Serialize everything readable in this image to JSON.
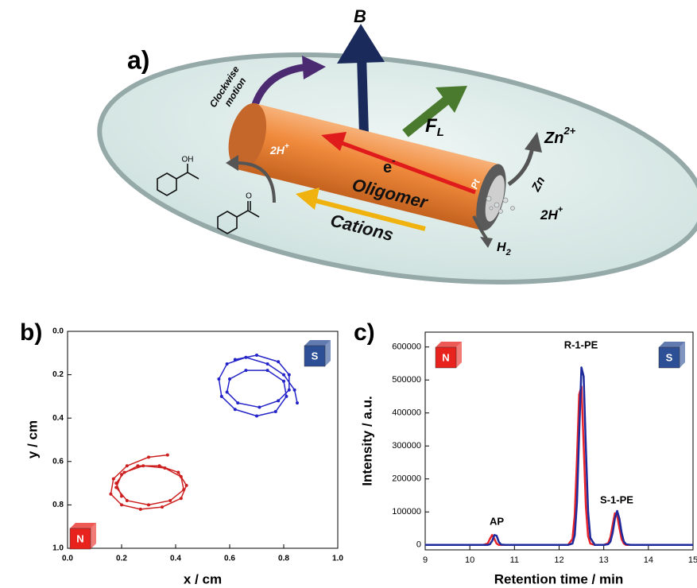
{
  "figure_a": {
    "label": "a)",
    "field": "B",
    "motion": [
      "Clockwise",
      "motion"
    ],
    "force": {
      "base": "F",
      "sub": "L"
    },
    "electron": {
      "base": "e",
      "sup": "-"
    },
    "rod": "Oligomer",
    "ions": "Cations",
    "electrode": "Pt",
    "metal": "Zn",
    "metal_ion": {
      "base": "Zn",
      "sup": "2+"
    },
    "protons_left": {
      "base": "2H",
      "sup": "+"
    },
    "protons_right": {
      "base": "2H",
      "sup": "+"
    },
    "hydrogen": {
      "base": "H",
      "sub": "2"
    },
    "hydroxyl": "OH",
    "carbonyl": "O"
  },
  "chart_data": [
    {
      "type": "line",
      "panel_label": "b)",
      "x_label": "x / cm",
      "y_label": "y / cm",
      "markers": true,
      "xlim": [
        0,
        1
      ],
      "ylim": [
        1,
        0
      ],
      "xticks": [
        {
          "value": 0,
          "label": "0.0"
        },
        0.2,
        0.4,
        0.6,
        0.8,
        {
          "value": 1,
          "label": "1.0"
        }
      ],
      "yticks": [
        {
          "value": 0,
          "label": "0.0"
        },
        0.2,
        0.4,
        0.6,
        0.8,
        {
          "value": 1,
          "label": "1.0"
        }
      ],
      "magnets": [
        {
          "label": "N",
          "color": "#e8231d"
        },
        {
          "label": "S",
          "color": "#2c4f96"
        }
      ],
      "series": [
        {
          "color": "#2424c8",
          "x": [
            0.85,
            0.84,
            0.8,
            0.74,
            0.66,
            0.59,
            0.56,
            0.57,
            0.62,
            0.7,
            0.77,
            0.81,
            0.8,
            0.74,
            0.66,
            0.6,
            0.59,
            0.63,
            0.71,
            0.78,
            0.82,
            0.82,
            0.78,
            0.7,
            0.62
          ],
          "values": [
            0.33,
            0.27,
            0.2,
            0.15,
            0.12,
            0.15,
            0.22,
            0.3,
            0.36,
            0.39,
            0.37,
            0.3,
            0.23,
            0.18,
            0.18,
            0.22,
            0.28,
            0.33,
            0.35,
            0.32,
            0.27,
            0.2,
            0.14,
            0.11,
            0.13
          ]
        },
        {
          "color": "#cc1f1f",
          "x": [
            0.37,
            0.3,
            0.22,
            0.17,
            0.16,
            0.2,
            0.27,
            0.35,
            0.42,
            0.44,
            0.41,
            0.34,
            0.26,
            0.2,
            0.18,
            0.22,
            0.3,
            0.38,
            0.43,
            0.42,
            0.36,
            0.28,
            0.21,
            0.18,
            0.2
          ],
          "values": [
            0.57,
            0.58,
            0.62,
            0.68,
            0.75,
            0.8,
            0.82,
            0.81,
            0.77,
            0.71,
            0.65,
            0.62,
            0.62,
            0.66,
            0.72,
            0.78,
            0.8,
            0.78,
            0.73,
            0.67,
            0.63,
            0.62,
            0.65,
            0.7,
            0.76
          ]
        }
      ]
    },
    {
      "type": "line",
      "panel_label": "c)",
      "x_label": "Retention time / min",
      "y_label": "Intensity / a.u.",
      "markers": false,
      "xlim": [
        9,
        15
      ],
      "ylim": [
        -15000,
        645000
      ],
      "xticks": [
        9,
        10,
        11,
        12,
        13,
        14,
        15
      ],
      "yticks": [
        0,
        100000,
        200000,
        300000,
        400000,
        500000,
        600000
      ],
      "annotations": [
        "AP",
        "R-1-PE",
        "S-1-PE"
      ],
      "magnets": [
        {
          "label": "N",
          "color": "#e8231d"
        },
        {
          "label": "S",
          "color": "#2c4f96"
        }
      ],
      "x": [
        9,
        10,
        10.3,
        10.4,
        10.45,
        10.5,
        10.55,
        10.6,
        10.65,
        10.7,
        10.8,
        11,
        12,
        12.2,
        12.3,
        12.35,
        12.4,
        12.45,
        12.5,
        12.55,
        12.6,
        12.65,
        12.7,
        12.8,
        13,
        13.1,
        13.15,
        13.2,
        13.25,
        13.3,
        13.35,
        13.4,
        13.45,
        13.5,
        13.6,
        14,
        15
      ],
      "series": [
        {
          "color": "#e8242a",
          "values": [
            0,
            0,
            0,
            4000,
            18000,
            30000,
            18000,
            4000,
            0,
            0,
            0,
            0,
            0,
            0,
            18000,
            90000,
            260000,
            456000,
            480000,
            303000,
            115000,
            26000,
            4000,
            0,
            0,
            5000,
            23000,
            61000,
            96000,
            91000,
            52000,
            18000,
            4000,
            0,
            0,
            0,
            0
          ]
        },
        {
          "color": "#1e2a9c",
          "values": [
            0,
            0,
            0,
            0,
            2000,
            12000,
            30000,
            28000,
            9000,
            1000,
            0,
            0,
            0,
            0,
            4000,
            29000,
            129000,
            340000,
            538000,
            511000,
            291000,
            100000,
            21000,
            0,
            0,
            2000,
            10000,
            37000,
            80000,
            103000,
            80000,
            37000,
            10000,
            2000,
            0,
            0,
            0
          ]
        }
      ]
    }
  ]
}
